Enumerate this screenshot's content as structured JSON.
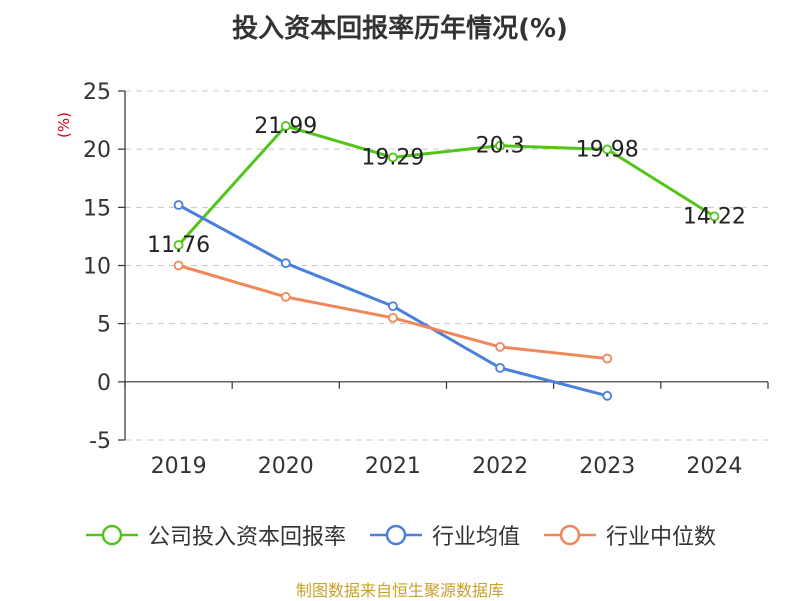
{
  "title": "投入资本回报率历年情况(%)",
  "source": "制图数据来自恒生聚源数据库",
  "chart_data": {
    "type": "line",
    "title": "投入资本回报率历年情况(%)",
    "ylabel": "(%)",
    "xlabel": "",
    "categories": [
      "2019",
      "2020",
      "2021",
      "2022",
      "2023",
      "2024"
    ],
    "ylim": [
      -5,
      25
    ],
    "yticks": [
      -5,
      0,
      5,
      10,
      15,
      20,
      25
    ],
    "ytick_labels": [
      "-5",
      "0",
      "5",
      "10",
      "15",
      "20",
      "25"
    ],
    "grid": true,
    "legend_position": "bottom",
    "series": [
      {
        "name": "公司投入资本回报率",
        "color": "#52c41a",
        "values": [
          11.76,
          21.99,
          19.29,
          20.3,
          19.98,
          14.22
        ],
        "labels": [
          "11.76",
          "21.99",
          "19.29",
          "20.3",
          "19.98",
          "14.22"
        ]
      },
      {
        "name": "行业均值",
        "color": "#4a7fdb",
        "values": [
          15.2,
          10.2,
          6.5,
          1.2,
          -1.2,
          null
        ]
      },
      {
        "name": "行业中位数",
        "color": "#f0875a",
        "values": [
          10.0,
          7.3,
          5.5,
          3.0,
          2.0,
          null
        ]
      }
    ]
  }
}
